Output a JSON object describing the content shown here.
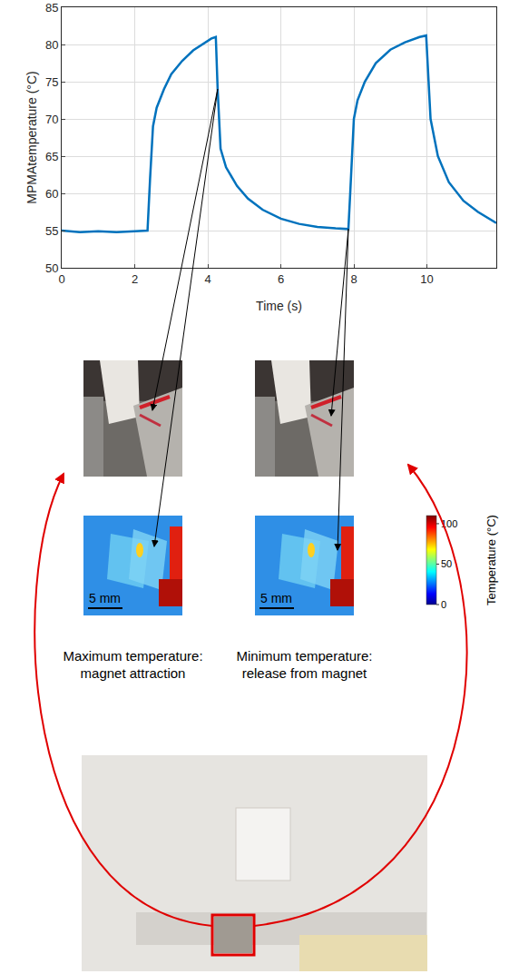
{
  "chart_data": {
    "type": "line",
    "x_label": "Time (s)",
    "y_label": "MPMAtemperature (°C)",
    "x": [
      0,
      0.5,
      1,
      1.5,
      2,
      2.35,
      2.42,
      2.5,
      2.6,
      2.8,
      3.0,
      3.3,
      3.6,
      3.9,
      4.1,
      4.22,
      4.27,
      4.35,
      4.5,
      4.8,
      5.1,
      5.5,
      6,
      6.5,
      7,
      7.5,
      7.85,
      7.9,
      7.95,
      8.0,
      8.1,
      8.3,
      8.6,
      9,
      9.4,
      9.8,
      9.98,
      10.03,
      10.1,
      10.3,
      10.6,
      11,
      11.4,
      11.9
    ],
    "series": [
      {
        "name": "MPMA temperature",
        "color": "#0072bd",
        "values": [
          55,
          54.8,
          54.9,
          54.8,
          54.9,
          55,
          62,
          69,
          71.5,
          74,
          76,
          77.8,
          79.2,
          80.2,
          80.8,
          81,
          74,
          66,
          63.5,
          61,
          59.3,
          57.8,
          56.6,
          55.9,
          55.5,
          55.3,
          55.2,
          60,
          66,
          70,
          72.5,
          75,
          77.5,
          79.3,
          80.3,
          81,
          81.2,
          76,
          70,
          65,
          61.5,
          59,
          57.5,
          56
        ]
      }
    ],
    "xlim": [
      0,
      11.9
    ],
    "xticks": [
      0,
      2,
      4,
      6,
      8,
      10
    ],
    "ylim": [
      50,
      85
    ],
    "yticks": [
      50,
      55,
      60,
      65,
      70,
      75,
      80,
      85
    ],
    "grid": true
  },
  "panels": [
    {
      "caption": "Maximum temperature: magnet attraction",
      "scale_bar": "5 mm"
    },
    {
      "caption": "Minimum temperature: release from magnet",
      "scale_bar": "5 mm"
    }
  ],
  "colorbar": {
    "title": "Temperature (°C)",
    "range": [
      0,
      110
    ],
    "ticks": [
      0,
      50,
      100
    ]
  }
}
